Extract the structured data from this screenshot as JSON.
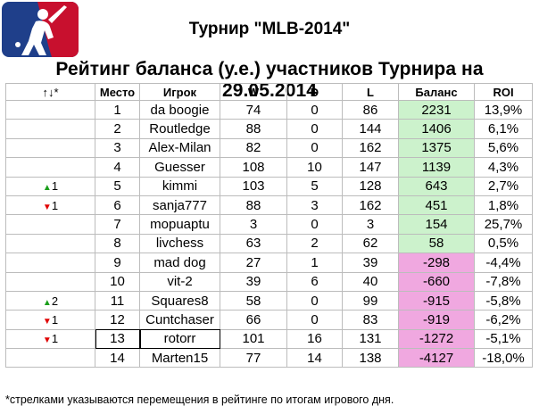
{
  "title": "Турнир \"MLB-2014\"",
  "subtitle": "Рейтинг баланса (у.е.) участников Турнира на 29.05.2014",
  "columns": [
    "↑↓*",
    "Место",
    "Игрок",
    "W",
    "D",
    "L",
    "Баланс",
    "ROI"
  ],
  "rows": [
    {
      "move": "",
      "dir": "",
      "place": "1",
      "player": "da boogie",
      "w": "74",
      "d": "0",
      "l": "86",
      "balance": "2231",
      "roi": "13,9%",
      "sign": "pos"
    },
    {
      "move": "",
      "dir": "",
      "place": "2",
      "player": "Routledge",
      "w": "88",
      "d": "0",
      "l": "144",
      "balance": "1406",
      "roi": "6,1%",
      "sign": "pos"
    },
    {
      "move": "",
      "dir": "",
      "place": "3",
      "player": "Alex-Milan",
      "w": "82",
      "d": "0",
      "l": "162",
      "balance": "1375",
      "roi": "5,6%",
      "sign": "pos"
    },
    {
      "move": "",
      "dir": "",
      "place": "4",
      "player": "Guesser",
      "w": "108",
      "d": "10",
      "l": "147",
      "balance": "1139",
      "roi": "4,3%",
      "sign": "pos"
    },
    {
      "move": "1",
      "dir": "up",
      "place": "5",
      "player": "kimmi",
      "w": "103",
      "d": "5",
      "l": "128",
      "balance": "643",
      "roi": "2,7%",
      "sign": "pos"
    },
    {
      "move": "1",
      "dir": "down",
      "place": "6",
      "player": "sanja777",
      "w": "88",
      "d": "3",
      "l": "162",
      "balance": "451",
      "roi": "1,8%",
      "sign": "pos"
    },
    {
      "move": "",
      "dir": "",
      "place": "7",
      "player": "mopuaptu",
      "w": "3",
      "d": "0",
      "l": "3",
      "balance": "154",
      "roi": "25,7%",
      "sign": "pos"
    },
    {
      "move": "",
      "dir": "",
      "place": "8",
      "player": "livchess",
      "w": "63",
      "d": "2",
      "l": "62",
      "balance": "58",
      "roi": "0,5%",
      "sign": "pos"
    },
    {
      "move": "",
      "dir": "",
      "place": "9",
      "player": "mad dog",
      "w": "27",
      "d": "1",
      "l": "39",
      "balance": "-298",
      "roi": "-4,4%",
      "sign": "neg"
    },
    {
      "move": "",
      "dir": "",
      "place": "10",
      "player": "vit-2",
      "w": "39",
      "d": "6",
      "l": "40",
      "balance": "-660",
      "roi": "-7,8%",
      "sign": "neg"
    },
    {
      "move": "2",
      "dir": "up",
      "place": "11",
      "player": "Squares8",
      "w": "58",
      "d": "0",
      "l": "99",
      "balance": "-915",
      "roi": "-5,8%",
      "sign": "neg"
    },
    {
      "move": "1",
      "dir": "down",
      "place": "12",
      "player": "Cuntchaser",
      "w": "66",
      "d": "0",
      "l": "83",
      "balance": "-919",
      "roi": "-6,2%",
      "sign": "neg"
    },
    {
      "move": "1",
      "dir": "down",
      "place": "13",
      "player": "rotorr",
      "w": "101",
      "d": "16",
      "l": "131",
      "balance": "-1272",
      "roi": "-5,1%",
      "sign": "neg",
      "highlight": true
    },
    {
      "move": "",
      "dir": "",
      "place": "14",
      "player": "Marten15",
      "w": "77",
      "d": "14",
      "l": "138",
      "balance": "-4127",
      "roi": "-18,0%",
      "sign": "neg"
    }
  ],
  "footnote": "*стрелками указываются перемещения в рейтинге по итогам игрового дня.",
  "colors": {
    "positive_bg": "#ccf2cc",
    "negative_bg": "#f0a8e0",
    "up_arrow": "#1a9e1a",
    "down_arrow": "#e00000",
    "logo_blue": "#1f3f8a",
    "logo_red": "#c8102e"
  },
  "icons": {
    "logo": "mlb-logo-icon",
    "up": "up-arrow-icon",
    "down": "down-arrow-icon"
  }
}
